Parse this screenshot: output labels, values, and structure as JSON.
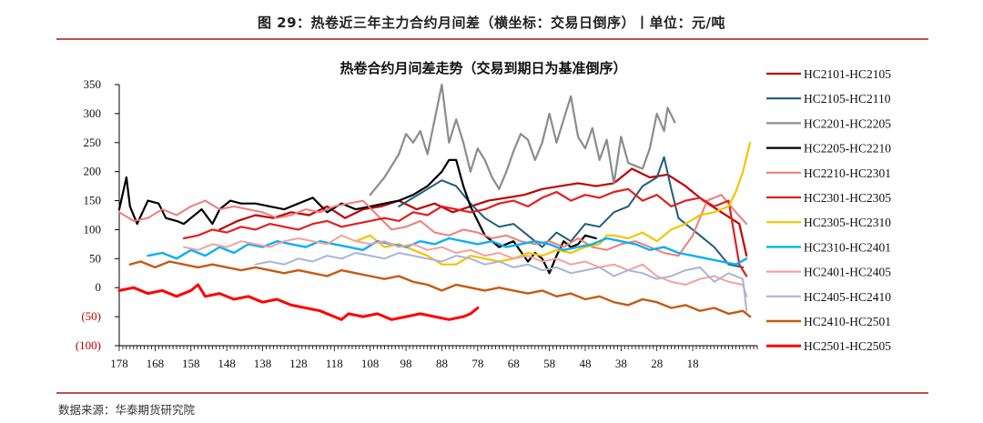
{
  "header": {
    "title": "图 29：热卷近三年主力合约月间差（横坐标：交易日倒序）丨单位：元/吨"
  },
  "footer": {
    "source": "数据来源：华泰期货研究院"
  },
  "chart_data": {
    "type": "line",
    "title": "热卷合约月间差走势（交易到期日为基准倒序）",
    "xlabel": "",
    "ylabel": "",
    "xlim": [
      178,
      0
    ],
    "ylim": [
      -100,
      350
    ],
    "yticks": [
      350,
      300,
      250,
      200,
      150,
      100,
      50,
      0,
      -50,
      -100
    ],
    "ytick_labels": [
      "350",
      "300",
      "250",
      "200",
      "150",
      "100",
      "50",
      "0",
      "(50)",
      "(100)"
    ],
    "xticks": [
      178,
      168,
      158,
      148,
      138,
      128,
      118,
      108,
      98,
      88,
      78,
      68,
      58,
      48,
      38,
      28,
      18
    ],
    "grid": false,
    "legend_position": "right",
    "series": [
      {
        "name": "HC2101-HC2105",
        "color": "#c00000",
        "width": 2.2,
        "x": [
          150,
          145,
          140,
          135,
          130,
          125,
          120,
          115,
          110,
          105,
          100,
          95,
          90,
          85,
          80,
          75,
          70,
          65,
          60,
          55,
          50,
          45,
          40,
          35,
          30,
          25,
          20,
          15,
          10,
          5,
          3
        ],
        "y": [
          100,
          115,
          125,
          120,
          130,
          125,
          140,
          120,
          135,
          140,
          150,
          135,
          145,
          130,
          140,
          150,
          155,
          160,
          170,
          175,
          180,
          175,
          180,
          205,
          190,
          195,
          175,
          150,
          130,
          110,
          55
        ]
      },
      {
        "name": "HC2105-HC2110",
        "color": "#1f5c7a",
        "width": 2,
        "x": [
          100,
          96,
          92,
          88,
          84,
          80,
          76,
          72,
          68,
          64,
          60,
          56,
          52,
          48,
          44,
          40,
          36,
          32,
          28,
          26,
          24,
          22,
          20,
          16,
          12,
          8,
          4
        ],
        "y": [
          140,
          155,
          170,
          185,
          175,
          145,
          120,
          105,
          110,
          90,
          70,
          95,
          80,
          110,
          105,
          130,
          140,
          175,
          190,
          225,
          170,
          120,
          110,
          90,
          70,
          40,
          35
        ]
      },
      {
        "name": "HC2201-HC2205",
        "color": "#8c8c8c",
        "width": 2.2,
        "x": [
          108,
          104,
          100,
          98,
          96,
          94,
          92,
          90,
          88,
          86,
          84,
          82,
          80,
          78,
          76,
          74,
          72,
          70,
          68,
          66,
          64,
          62,
          60,
          58,
          56,
          54,
          52,
          50,
          48,
          46,
          44,
          42,
          40,
          38,
          36,
          34,
          32,
          30,
          28,
          26,
          25,
          23
        ],
        "y": [
          160,
          190,
          230,
          265,
          250,
          270,
          230,
          290,
          350,
          250,
          290,
          250,
          200,
          240,
          220,
          190,
          170,
          200,
          235,
          265,
          255,
          220,
          250,
          300,
          250,
          290,
          330,
          260,
          240,
          275,
          220,
          255,
          180,
          260,
          215,
          210,
          205,
          240,
          300,
          270,
          310,
          285
        ]
      },
      {
        "name": "HC2205-HC2210",
        "color": "#000000",
        "width": 2.2,
        "x": [
          178,
          176,
          175,
          173,
          170,
          167,
          165,
          162,
          160,
          158,
          155,
          152,
          150,
          147,
          144,
          140,
          136,
          132,
          128,
          124,
          120,
          116,
          112,
          108,
          104,
          100,
          96,
          92,
          88,
          86,
          84,
          82,
          80,
          78,
          76,
          72,
          68,
          64,
          62,
          60,
          58,
          56,
          54,
          52,
          50,
          48,
          45
        ],
        "y": [
          135,
          190,
          140,
          110,
          150,
          145,
          120,
          115,
          110,
          120,
          135,
          110,
          135,
          150,
          145,
          145,
          140,
          135,
          145,
          155,
          130,
          145,
          135,
          140,
          145,
          150,
          160,
          175,
          200,
          220,
          220,
          175,
          140,
          115,
          90,
          70,
          80,
          45,
          60,
          50,
          25,
          55,
          80,
          70,
          75,
          90,
          85
        ]
      },
      {
        "name": "HC2210-HC2301",
        "color": "#f07c7c",
        "width": 2,
        "x": [
          178,
          174,
          170,
          166,
          162,
          158,
          154,
          150,
          146,
          142,
          138,
          134,
          130,
          126,
          122,
          118,
          114,
          110,
          106,
          102,
          98,
          94,
          90,
          86,
          82,
          78,
          74,
          70,
          66,
          62,
          58,
          54,
          50,
          46,
          42,
          38,
          34,
          30,
          26,
          22,
          18,
          14,
          10,
          6,
          3
        ],
        "y": [
          130,
          115,
          120,
          135,
          125,
          140,
          150,
          135,
          140,
          135,
          130,
          120,
          125,
          135,
          130,
          140,
          145,
          150,
          125,
          100,
          105,
          115,
          95,
          90,
          100,
          95,
          85,
          90,
          80,
          75,
          80,
          70,
          85,
          70,
          65,
          75,
          80,
          70,
          60,
          55,
          90,
          150,
          160,
          130,
          110
        ]
      },
      {
        "name": "HC2301-HC2305",
        "color": "#e02020",
        "width": 2.2,
        "x": [
          160,
          156,
          152,
          148,
          144,
          140,
          136,
          132,
          128,
          124,
          120,
          116,
          112,
          108,
          104,
          100,
          96,
          92,
          88,
          84,
          80,
          76,
          72,
          68,
          64,
          60,
          56,
          52,
          48,
          44,
          40,
          36,
          32,
          28,
          24,
          20,
          16,
          12,
          8,
          5,
          3
        ],
        "y": [
          85,
          90,
          100,
          95,
          105,
          100,
          110,
          105,
          100,
          110,
          115,
          105,
          110,
          115,
          120,
          115,
          130,
          125,
          140,
          135,
          130,
          135,
          145,
          150,
          140,
          155,
          165,
          150,
          160,
          155,
          165,
          170,
          150,
          160,
          140,
          150,
          155,
          140,
          150,
          40,
          20
        ]
      },
      {
        "name": "HC2305-HC2310",
        "color": "#f5c400",
        "width": 2.2,
        "x": [
          112,
          108,
          104,
          100,
          96,
          92,
          88,
          84,
          80,
          76,
          72,
          68,
          64,
          60,
          56,
          52,
          48,
          44,
          42,
          40,
          36,
          32,
          28,
          24,
          20,
          16,
          12,
          8,
          6,
          4,
          2
        ],
        "y": [
          80,
          90,
          70,
          75,
          65,
          55,
          40,
          40,
          55,
          50,
          45,
          50,
          60,
          55,
          65,
          60,
          70,
          75,
          90,
          90,
          85,
          95,
          80,
          100,
          110,
          125,
          130,
          140,
          165,
          200,
          250
        ]
      },
      {
        "name": "HC2310-HC2401",
        "color": "#0ab0f0",
        "width": 2.4,
        "x": [
          170,
          166,
          162,
          158,
          154,
          150,
          146,
          142,
          138,
          134,
          130,
          126,
          122,
          118,
          114,
          110,
          106,
          102,
          98,
          94,
          90,
          86,
          82,
          78,
          74,
          70,
          66,
          62,
          58,
          54,
          50,
          46,
          42,
          38,
          34,
          30,
          26,
          22,
          18,
          14,
          10,
          6,
          3
        ],
        "y": [
          55,
          60,
          50,
          65,
          55,
          70,
          60,
          75,
          70,
          80,
          75,
          70,
          80,
          75,
          70,
          65,
          80,
          75,
          70,
          80,
          75,
          85,
          80,
          75,
          80,
          70,
          75,
          80,
          75,
          65,
          70,
          75,
          85,
          80,
          75,
          65,
          70,
          60,
          55,
          50,
          45,
          40,
          50
        ]
      },
      {
        "name": "HC2401-HC2405",
        "color": "#f5a0a0",
        "width": 2,
        "x": [
          160,
          156,
          152,
          148,
          144,
          140,
          136,
          132,
          128,
          124,
          120,
          116,
          112,
          108,
          104,
          100,
          96,
          92,
          88,
          84,
          80,
          76,
          72,
          68,
          64,
          60,
          56,
          52,
          48,
          44,
          40,
          36,
          32,
          28,
          24,
          20,
          16,
          12,
          8,
          4,
          3
        ],
        "y": [
          70,
          65,
          75,
          70,
          80,
          75,
          70,
          80,
          85,
          80,
          75,
          90,
          80,
          75,
          80,
          70,
          75,
          65,
          70,
          60,
          65,
          55,
          60,
          50,
          55,
          45,
          50,
          40,
          45,
          35,
          40,
          30,
          40,
          20,
          10,
          5,
          15,
          20,
          10,
          5,
          -15
        ]
      },
      {
        "name": "HC2405-HC2410",
        "color": "#a8b4d8",
        "width": 2,
        "x": [
          140,
          136,
          132,
          128,
          124,
          120,
          116,
          112,
          108,
          104,
          100,
          96,
          92,
          88,
          84,
          80,
          76,
          72,
          68,
          64,
          60,
          56,
          52,
          48,
          44,
          40,
          36,
          32,
          28,
          24,
          20,
          16,
          12,
          8,
          4,
          3
        ],
        "y": [
          40,
          45,
          40,
          50,
          45,
          55,
          50,
          60,
          55,
          50,
          60,
          55,
          50,
          45,
          55,
          50,
          40,
          45,
          35,
          40,
          30,
          35,
          25,
          30,
          35,
          20,
          30,
          25,
          15,
          20,
          30,
          35,
          10,
          25,
          15,
          -40
        ]
      },
      {
        "name": "HC2410-HC2501",
        "color": "#c55a11",
        "width": 2.4,
        "x": [
          175,
          172,
          168,
          164,
          160,
          156,
          152,
          148,
          144,
          140,
          136,
          132,
          128,
          124,
          120,
          116,
          112,
          108,
          104,
          100,
          96,
          92,
          88,
          84,
          80,
          76,
          72,
          68,
          64,
          60,
          56,
          52,
          48,
          44,
          40,
          36,
          32,
          28,
          24,
          20,
          16,
          12,
          8,
          4,
          2
        ],
        "y": [
          40,
          45,
          35,
          45,
          40,
          35,
          40,
          35,
          30,
          35,
          30,
          25,
          30,
          25,
          20,
          30,
          25,
          20,
          15,
          20,
          10,
          5,
          -5,
          5,
          0,
          -5,
          0,
          -5,
          -10,
          -5,
          -15,
          -10,
          -20,
          -15,
          -25,
          -30,
          -20,
          -25,
          -35,
          -30,
          -40,
          -35,
          -45,
          -40,
          -50
        ]
      },
      {
        "name": "HC2501-HC2505",
        "color": "#ff0000",
        "width": 3,
        "x": [
          178,
          174,
          170,
          166,
          162,
          158,
          156,
          154,
          150,
          146,
          142,
          138,
          134,
          130,
          126,
          122,
          118,
          116,
          114,
          110,
          106,
          102,
          98,
          94,
          90,
          86,
          82,
          80,
          78
        ],
        "y": [
          -5,
          0,
          -10,
          -5,
          -15,
          -5,
          5,
          -15,
          -10,
          -20,
          -15,
          -25,
          -20,
          -30,
          -35,
          -40,
          -50,
          -55,
          -45,
          -50,
          -45,
          -55,
          -50,
          -45,
          -50,
          -55,
          -50,
          -45,
          -35
        ]
      }
    ]
  }
}
